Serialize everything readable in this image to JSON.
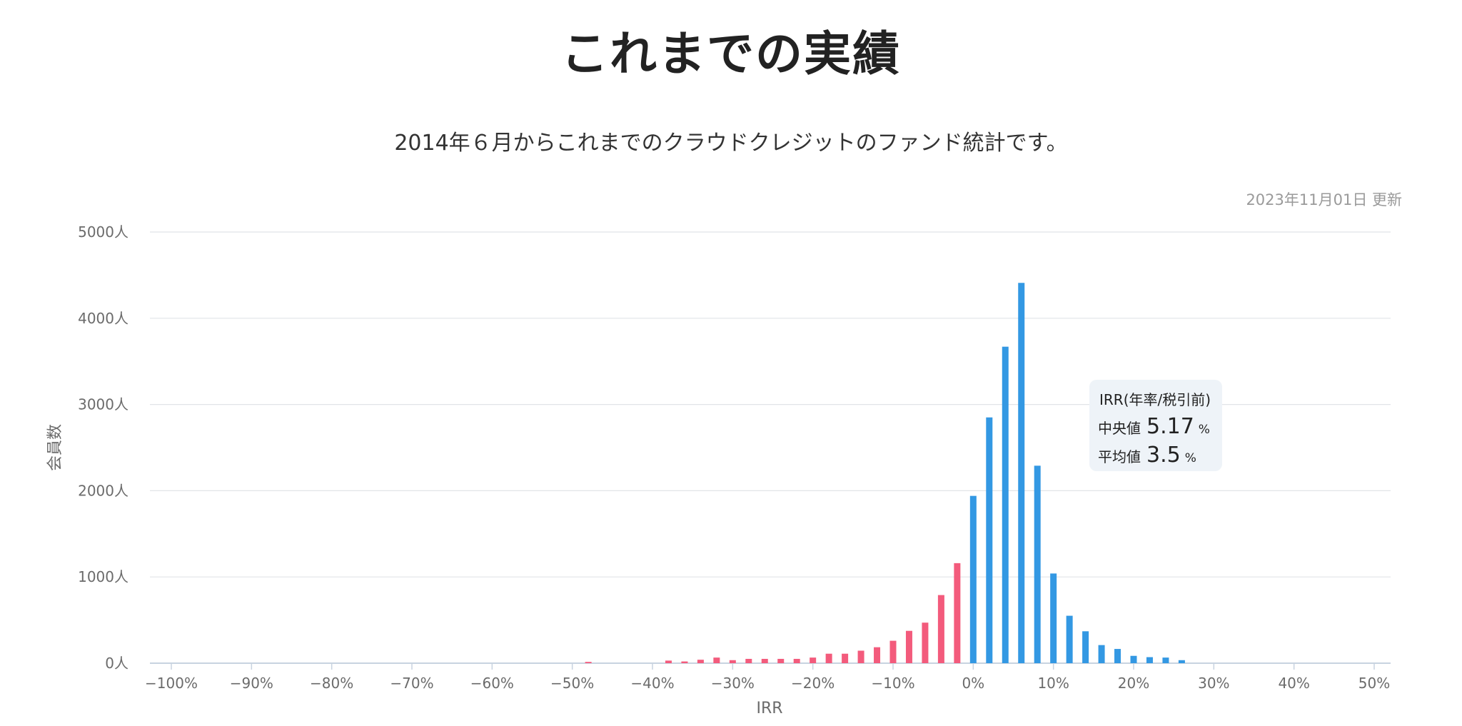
{
  "page": {
    "title": "これまでの実績",
    "subtitle": "2014年６月からこれまでのクラウドクレジットのファンド統計です。",
    "updated": "2023年11月01日 更新"
  },
  "tooltip": {
    "heading": "IRR(年率/税引前)",
    "median_label": "中央値",
    "median_value": "5.17",
    "mean_label": "平均値",
    "mean_value": "3.5",
    "unit": "%"
  },
  "colors": {
    "negative": "#f35b7c",
    "positive": "#3398e3",
    "grid": "#e1e4e8",
    "axis": "#c8d3e0"
  },
  "chart_data": {
    "type": "bar",
    "xlabel": "IRR",
    "ylabel": "会員数",
    "xlim": [
      -100,
      50
    ],
    "ylim": [
      0,
      5000
    ],
    "x_ticks": [
      "−100%",
      "−90%",
      "−80%",
      "−70%",
      "−60%",
      "−50%",
      "−40%",
      "−30%",
      "−20%",
      "−10%",
      "0%",
      "10%",
      "20%",
      "30%",
      "40%",
      "50%"
    ],
    "y_ticks": [
      "0人",
      "1000人",
      "2000人",
      "3000人",
      "4000人",
      "5000人"
    ],
    "grid": true,
    "bins": [
      {
        "x": -48,
        "value": 15
      },
      {
        "x": -38,
        "value": 30
      },
      {
        "x": -36,
        "value": 20
      },
      {
        "x": -34,
        "value": 40
      },
      {
        "x": -32,
        "value": 65
      },
      {
        "x": -30,
        "value": 35
      },
      {
        "x": -28,
        "value": 50
      },
      {
        "x": -26,
        "value": 50
      },
      {
        "x": -24,
        "value": 50
      },
      {
        "x": -22,
        "value": 50
      },
      {
        "x": -20,
        "value": 65
      },
      {
        "x": -18,
        "value": 110
      },
      {
        "x": -16,
        "value": 110
      },
      {
        "x": -14,
        "value": 145
      },
      {
        "x": -12,
        "value": 185
      },
      {
        "x": -10,
        "value": 260
      },
      {
        "x": -8,
        "value": 375
      },
      {
        "x": -6,
        "value": 470
      },
      {
        "x": -4,
        "value": 790
      },
      {
        "x": -2,
        "value": 1160
      },
      {
        "x": 0,
        "value": 1940
      },
      {
        "x": 2,
        "value": 2850
      },
      {
        "x": 4,
        "value": 3670
      },
      {
        "x": 6,
        "value": 4410
      },
      {
        "x": 8,
        "value": 2290
      },
      {
        "x": 10,
        "value": 1040
      },
      {
        "x": 12,
        "value": 550
      },
      {
        "x": 14,
        "value": 370
      },
      {
        "x": 16,
        "value": 210
      },
      {
        "x": 18,
        "value": 165
      },
      {
        "x": 20,
        "value": 85
      },
      {
        "x": 22,
        "value": 70
      },
      {
        "x": 24,
        "value": 65
      },
      {
        "x": 26,
        "value": 35
      }
    ]
  }
}
